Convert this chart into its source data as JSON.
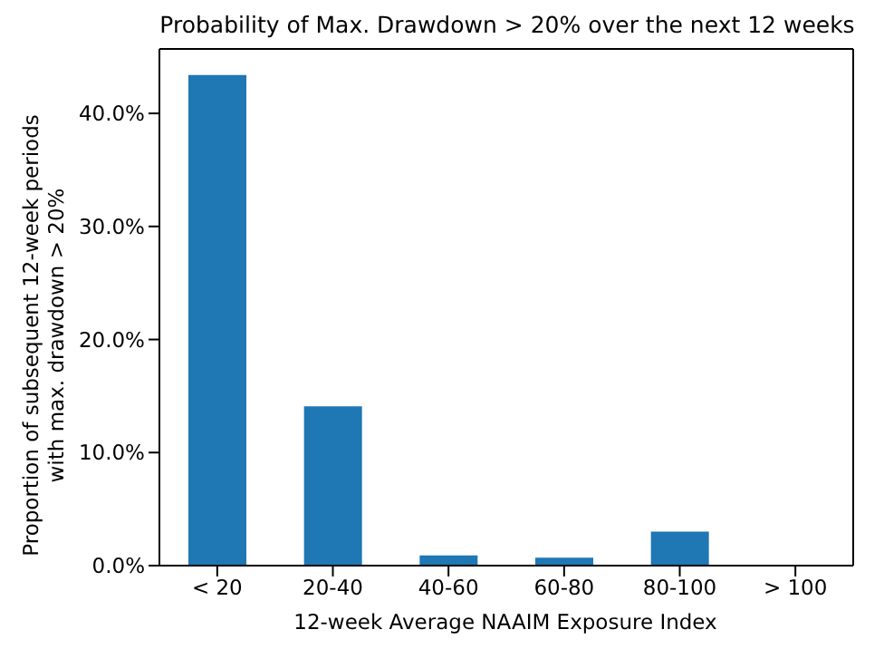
{
  "chart_data": {
    "type": "bar",
    "title": "Probability of Max. Drawdown > 20% over the next 12 weeks",
    "xlabel": "12-week Average NAAIM Exposure Index",
    "ylabel": "Proportion of subsequent 12-week periods\nwith max. drawdown > 20%",
    "categories": [
      "< 20",
      "20-40",
      "40-60",
      "60-80",
      "80-100",
      "> 100"
    ],
    "values": [
      43.4,
      14.1,
      0.9,
      0.7,
      3.0,
      0
    ],
    "color": "#1f77b4",
    "ylim": [
      0,
      45.7
    ],
    "yticks": [
      {
        "value": 0,
        "label": "0.0%"
      },
      {
        "value": 10,
        "label": "10.0%"
      },
      {
        "value": 20,
        "label": "20.0%"
      },
      {
        "value": 30,
        "label": "30.0%"
      },
      {
        "value": 40,
        "label": "40.0%"
      }
    ],
    "grid": false,
    "legend": false
  }
}
